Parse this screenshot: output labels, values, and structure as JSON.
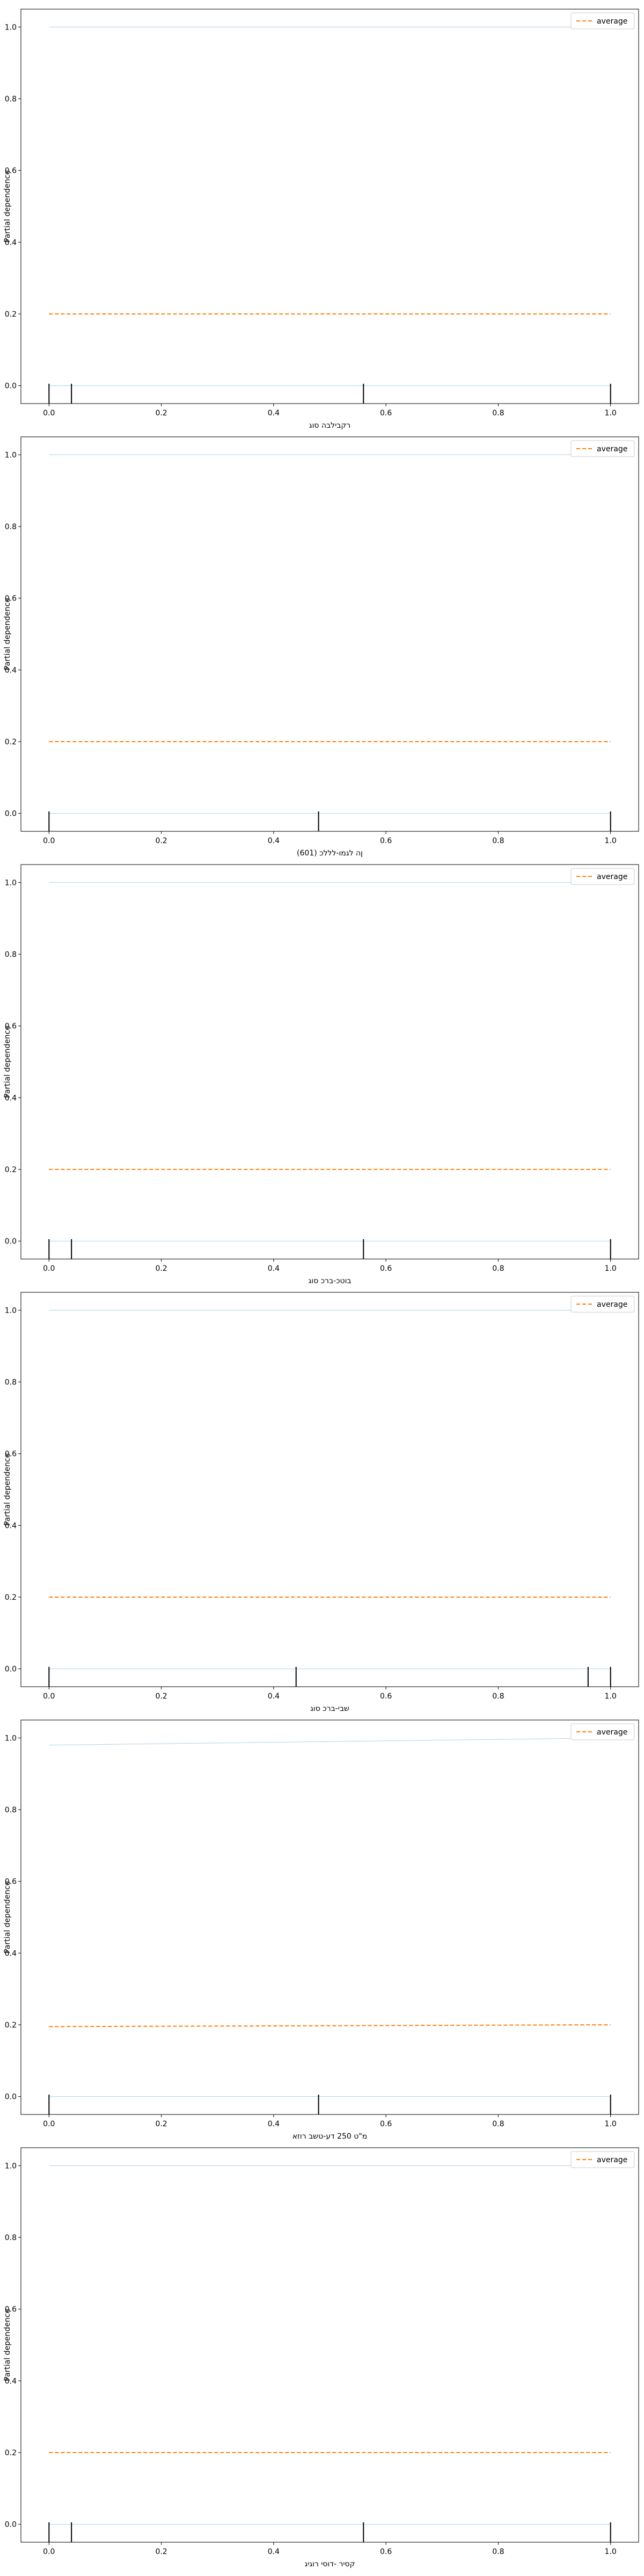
{
  "colors": {
    "average": "#ff7f0e",
    "ice": "#1f77b4",
    "deciles": "#000000",
    "frame": "#000000"
  },
  "chart_data": [
    {
      "type": "line",
      "xlabel": "רקבילבה סוג",
      "ylabel": "Partial dependence",
      "xlim": [
        -0.05,
        1.05
      ],
      "ylim": [
        -0.05,
        1.05
      ],
      "xticks": [
        "0.0",
        "0.2",
        "0.4",
        "0.6",
        "0.8",
        "1.0"
      ],
      "yticks": [
        "0.0",
        "0.2",
        "0.4",
        "0.6",
        "0.8",
        "1.0"
      ],
      "legend": {
        "label": "average",
        "placement": "top-right"
      },
      "series": [
        {
          "name": "average",
          "style": "dashed",
          "x": [
            0,
            1
          ],
          "y": [
            0.2,
            0.2
          ]
        },
        {
          "style": "ice",
          "x": [
            0,
            1
          ],
          "y": [
            0.0,
            0.0
          ]
        },
        {
          "style": "ice",
          "x": [
            0,
            1
          ],
          "y": [
            1.0,
            1.0
          ]
        }
      ],
      "deciles": [
        0.0,
        0.04,
        0.56,
        1.0
      ]
    },
    {
      "type": "line",
      "xlabel": "ןה לגמו-לללכ (601)",
      "ylabel": "Partial dependence",
      "xlim": [
        -0.05,
        1.05
      ],
      "ylim": [
        -0.05,
        1.05
      ],
      "xticks": [
        "0.0",
        "0.2",
        "0.4",
        "0.6",
        "0.8",
        "1.0"
      ],
      "yticks": [
        "0.0",
        "0.2",
        "0.4",
        "0.6",
        "0.8",
        "1.0"
      ],
      "legend": {
        "label": "average",
        "placement": "top-right"
      },
      "series": [
        {
          "name": "average",
          "style": "dashed",
          "x": [
            0,
            1
          ],
          "y": [
            0.2,
            0.2
          ]
        },
        {
          "style": "ice",
          "x": [
            0,
            1
          ],
          "y": [
            0.0,
            0.0
          ]
        },
        {
          "style": "ice",
          "x": [
            0,
            1
          ],
          "y": [
            1.0,
            1.0
          ]
        }
      ],
      "deciles": [
        0.0,
        0.48,
        1.0
      ]
    },
    {
      "type": "line",
      "xlabel": "בוטכ-ברכ סוג",
      "ylabel": "Partial dependence",
      "xlim": [
        -0.05,
        1.05
      ],
      "ylim": [
        -0.05,
        1.05
      ],
      "xticks": [
        "0.0",
        "0.2",
        "0.4",
        "0.6",
        "0.8",
        "1.0"
      ],
      "yticks": [
        "0.0",
        "0.2",
        "0.4",
        "0.6",
        "0.8",
        "1.0"
      ],
      "legend": {
        "label": "average",
        "placement": "top-right"
      },
      "series": [
        {
          "name": "average",
          "style": "dashed",
          "x": [
            0,
            1
          ],
          "y": [
            0.2,
            0.2
          ]
        },
        {
          "style": "ice",
          "x": [
            0,
            1
          ],
          "y": [
            0.0,
            0.0
          ]
        },
        {
          "style": "ice",
          "x": [
            0,
            1
          ],
          "y": [
            1.0,
            1.0
          ]
        }
      ],
      "deciles": [
        0.0,
        0.04,
        0.56,
        1.0
      ]
    },
    {
      "type": "line",
      "xlabel": "שבי-ברכ סוג",
      "ylabel": "Partial dependence",
      "xlim": [
        -0.05,
        1.05
      ],
      "ylim": [
        -0.05,
        1.05
      ],
      "xticks": [
        "0.0",
        "0.2",
        "0.4",
        "0.6",
        "0.8",
        "1.0"
      ],
      "yticks": [
        "0.0",
        "0.2",
        "0.4",
        "0.6",
        "0.8",
        "1.0"
      ],
      "legend": {
        "label": "average",
        "placement": "top-right"
      },
      "series": [
        {
          "name": "average",
          "style": "dashed",
          "x": [
            0,
            1
          ],
          "y": [
            0.2,
            0.2
          ]
        },
        {
          "style": "ice",
          "x": [
            0,
            1
          ],
          "y": [
            0.0,
            0.0
          ]
        },
        {
          "style": "ice",
          "x": [
            0,
            1
          ],
          "y": [
            1.0,
            1.0
          ]
        }
      ],
      "deciles": [
        0.0,
        0.44,
        0.96,
        1.0
      ]
    },
    {
      "type": "line",
      "xlabel": "מ\"ט 250 דע-טשב רוזא",
      "ylabel": "Partial dependence",
      "xlim": [
        -0.05,
        1.05
      ],
      "ylim": [
        -0.05,
        1.05
      ],
      "xticks": [
        "0.0",
        "0.2",
        "0.4",
        "0.6",
        "0.8",
        "1.0"
      ],
      "yticks": [
        "0.0",
        "0.2",
        "0.4",
        "0.6",
        "0.8",
        "1.0"
      ],
      "legend": {
        "label": "average",
        "placement": "top-right"
      },
      "series": [
        {
          "name": "average",
          "style": "dashed",
          "x": [
            0,
            1
          ],
          "y": [
            0.195,
            0.2
          ]
        },
        {
          "style": "ice",
          "x": [
            0,
            1
          ],
          "y": [
            0.0,
            0.0
          ]
        },
        {
          "style": "ice",
          "x": [
            0,
            1
          ],
          "y": [
            0.98,
            1.0
          ]
        }
      ],
      "deciles": [
        0.0,
        0.48,
        1.0
      ]
    },
    {
      "type": "line",
      "xlabel": "קסיר -דוסי רוגיג",
      "ylabel": "Partial dependence",
      "xlim": [
        -0.05,
        1.05
      ],
      "ylim": [
        -0.05,
        1.05
      ],
      "xticks": [
        "0.0",
        "0.2",
        "0.4",
        "0.6",
        "0.8",
        "1.0"
      ],
      "yticks": [
        "0.0",
        "0.2",
        "0.4",
        "0.6",
        "0.8",
        "1.0"
      ],
      "legend": {
        "label": "average",
        "placement": "top-right"
      },
      "series": [
        {
          "name": "average",
          "style": "dashed",
          "x": [
            0,
            1
          ],
          "y": [
            0.2,
            0.2
          ]
        },
        {
          "style": "ice",
          "x": [
            0,
            1
          ],
          "y": [
            0.0,
            0.0
          ]
        },
        {
          "style": "ice",
          "x": [
            0,
            1
          ],
          "y": [
            1.0,
            1.0
          ]
        }
      ],
      "deciles": [
        0.0,
        0.04,
        0.56,
        1.0
      ]
    }
  ]
}
